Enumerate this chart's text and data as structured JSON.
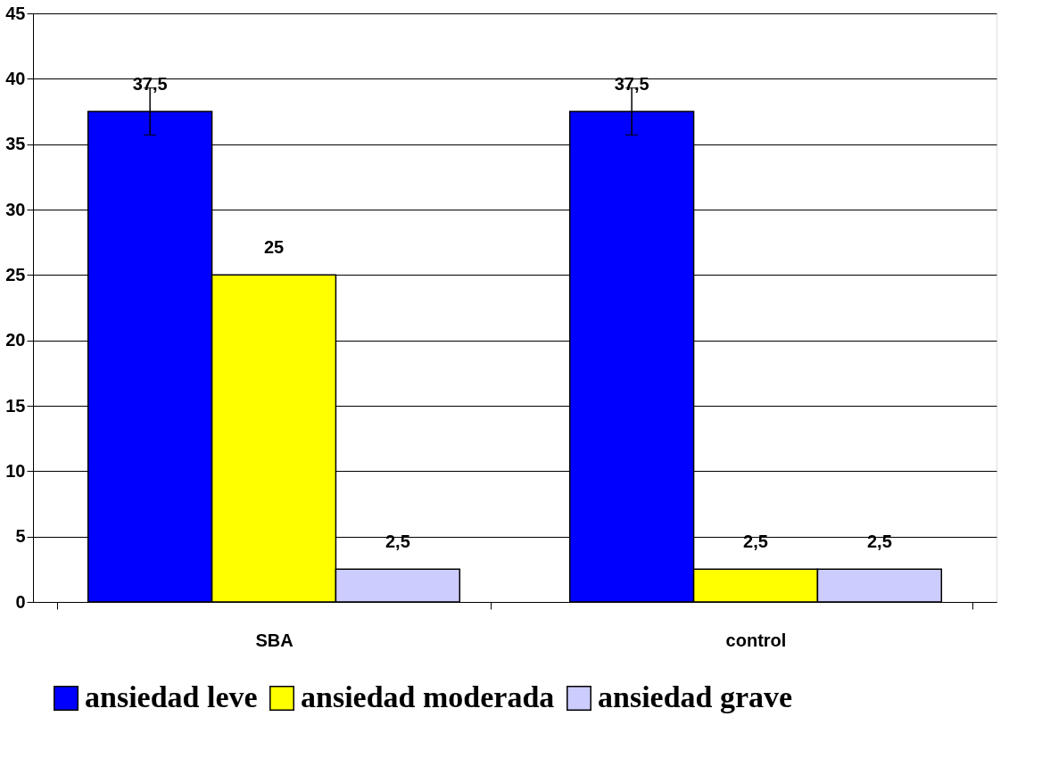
{
  "chart_data": {
    "type": "bar",
    "categories": [
      "SBA",
      "control"
    ],
    "series": [
      {
        "name": "ansiedad leve",
        "color": "#0000ff",
        "values": [
          37.5,
          37.5
        ],
        "value_labels": [
          "37,5",
          "37,5"
        ],
        "errors": [
          1.8,
          1.8
        ]
      },
      {
        "name": "ansiedad moderada",
        "color": "#ffff00",
        "values": [
          25,
          2.5
        ],
        "value_labels": [
          "25",
          "2,5"
        ]
      },
      {
        "name": "ansiedad grave",
        "color": "#ccccff",
        "values": [
          2.5,
          2.5
        ],
        "value_labels": [
          "2,5",
          "2,5"
        ]
      }
    ],
    "ylim": [
      0,
      45
    ],
    "yticks": [
      0,
      5,
      10,
      15,
      20,
      25,
      30,
      35,
      40,
      45
    ],
    "grid": "y",
    "legend": "bottom"
  }
}
